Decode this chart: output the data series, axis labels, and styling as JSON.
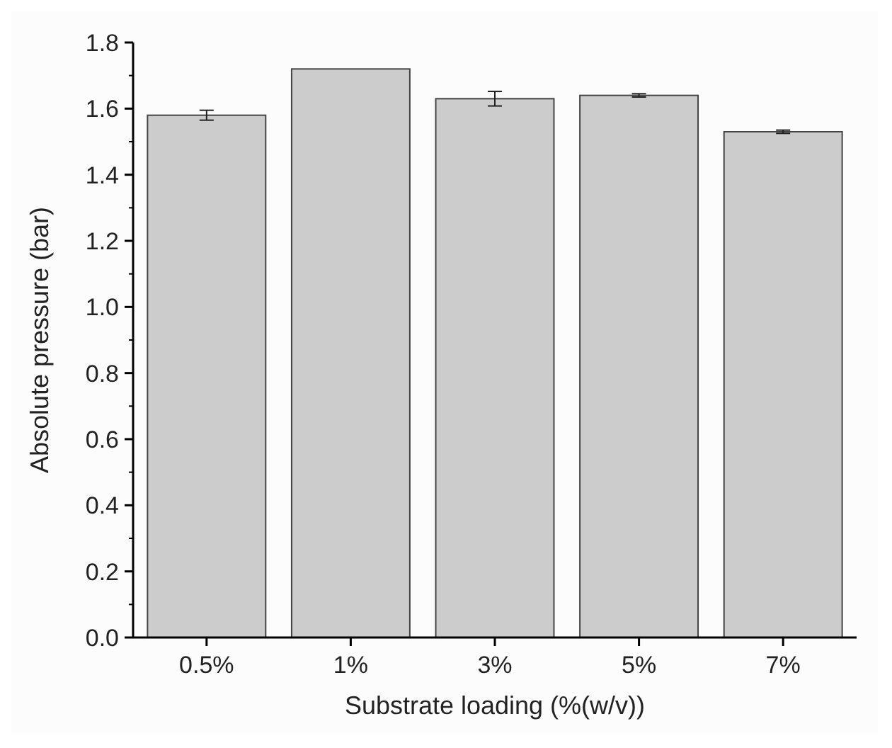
{
  "chart_data": {
    "type": "bar",
    "xlabel": "Substrate loading (%(w/v))",
    "ylabel": "Absolute pressure (bar)",
    "categories": [
      "0.5%",
      "1%",
      "3%",
      "5%",
      "7%"
    ],
    "values": [
      1.58,
      1.72,
      1.63,
      1.64,
      1.53
    ],
    "errors": [
      0.015,
      null,
      0.022,
      0.005,
      0.005
    ],
    "color": "#cccccc",
    "ylim": [
      0,
      1.8
    ],
    "yticks": [
      {
        "value": 0,
        "label": "0.0"
      },
      0.2,
      0.4,
      0.6,
      0.8,
      {
        "value": 1,
        "label": "1.0"
      },
      1.2,
      1.4,
      1.6,
      1.8
    ],
    "grid": false
  }
}
